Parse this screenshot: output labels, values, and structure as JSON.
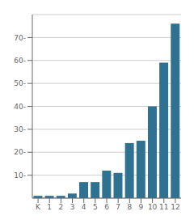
{
  "chart_data": {
    "type": "bar",
    "categories": [
      "K",
      "1",
      "2",
      "3",
      "4",
      "5",
      "6",
      "7",
      "8",
      "9",
      "10",
      "11",
      "12"
    ],
    "values": [
      1,
      1,
      1,
      2,
      7,
      7,
      12,
      11,
      24,
      25,
      40,
      59,
      76
    ],
    "color": "#2e7191",
    "ylim": [
      0,
      80
    ],
    "yticks": [
      {
        "value": 10,
        "label": "10-"
      },
      {
        "value": 20,
        "label": "20-"
      },
      {
        "value": 30,
        "label": "30-"
      },
      {
        "value": 40,
        "label": "40-"
      },
      {
        "value": 50,
        "label": "50-"
      },
      {
        "value": 60,
        "label": "60-"
      },
      {
        "value": 70,
        "label": "70-"
      }
    ],
    "grid": true
  }
}
